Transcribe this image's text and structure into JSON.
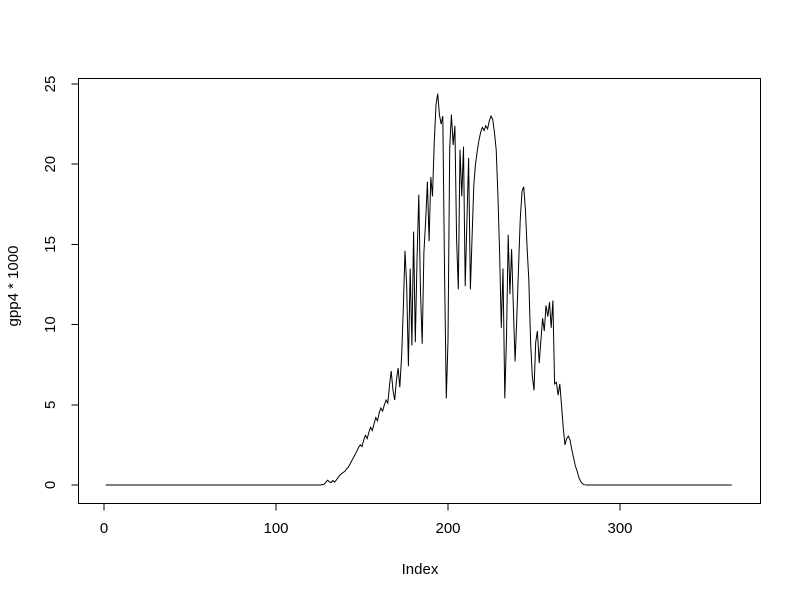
{
  "chart_data": {
    "type": "line",
    "title": "",
    "xlabel": "Index",
    "ylabel": "gpp4 * 1000",
    "x_ticks": [
      0,
      100,
      200,
      300
    ],
    "y_ticks": [
      0,
      5,
      10,
      15,
      20,
      25
    ],
    "xlim": [
      -13.6,
      379.6
    ],
    "ylim": [
      -1.0,
      25.4
    ],
    "grid": false,
    "legend": false,
    "box_frame": true,
    "line_color": "#000000",
    "frame_color": "#000000",
    "background_color": "#ffffff",
    "series": [
      {
        "name": "gpp4 * 1000",
        "points": [
          [
            1,
            0
          ],
          [
            10,
            0
          ],
          [
            20,
            0
          ],
          [
            30,
            0
          ],
          [
            40,
            0
          ],
          [
            50,
            0
          ],
          [
            60,
            0
          ],
          [
            70,
            0
          ],
          [
            80,
            0
          ],
          [
            90,
            0
          ],
          [
            100,
            0
          ],
          [
            110,
            0
          ],
          [
            120,
            0
          ],
          [
            126,
            0
          ],
          [
            128,
            0.05
          ],
          [
            130,
            0.3
          ],
          [
            131,
            0.2
          ],
          [
            132,
            0.15
          ],
          [
            133,
            0.28
          ],
          [
            134,
            0.18
          ],
          [
            135,
            0.3
          ],
          [
            136,
            0.45
          ],
          [
            137,
            0.6
          ],
          [
            138,
            0.7
          ],
          [
            139,
            0.78
          ],
          [
            140,
            0.85
          ],
          [
            141,
            1.0
          ],
          [
            142,
            1.1
          ],
          [
            143,
            1.3
          ],
          [
            144,
            1.5
          ],
          [
            145,
            1.7
          ],
          [
            146,
            1.9
          ],
          [
            147,
            2.1
          ],
          [
            148,
            2.35
          ],
          [
            149,
            2.5
          ],
          [
            150,
            2.4
          ],
          [
            151,
            2.8
          ],
          [
            152,
            3.1
          ],
          [
            153,
            2.9
          ],
          [
            154,
            3.3
          ],
          [
            155,
            3.6
          ],
          [
            156,
            3.4
          ],
          [
            157,
            3.8
          ],
          [
            158,
            4.2
          ],
          [
            159,
            4.0
          ],
          [
            160,
            4.5
          ],
          [
            161,
            4.8
          ],
          [
            162,
            4.6
          ],
          [
            163,
            5.0
          ],
          [
            164,
            5.3
          ],
          [
            165,
            5.1
          ],
          [
            166,
            6.2
          ],
          [
            167,
            7.1
          ],
          [
            168,
            5.9
          ],
          [
            169,
            5.3
          ],
          [
            170,
            6.5
          ],
          [
            171,
            7.3
          ],
          [
            172,
            6.1
          ],
          [
            173,
            8.0
          ],
          [
            174,
            11.0
          ],
          [
            175,
            14.6
          ],
          [
            176,
            12.4
          ],
          [
            177,
            7.4
          ],
          [
            178,
            13.5
          ],
          [
            179,
            8.7
          ],
          [
            180,
            15.8
          ],
          [
            181,
            8.9
          ],
          [
            182,
            14.0
          ],
          [
            183,
            18.1
          ],
          [
            184,
            12.0
          ],
          [
            185,
            8.8
          ],
          [
            186,
            14.5
          ],
          [
            187,
            16.4
          ],
          [
            188,
            18.9
          ],
          [
            189,
            15.2
          ],
          [
            190,
            19.2
          ],
          [
            191,
            18.0
          ],
          [
            192,
            21.3
          ],
          [
            193,
            23.7
          ],
          [
            194,
            24.4
          ],
          [
            195,
            23.1
          ],
          [
            196,
            22.5
          ],
          [
            197,
            23.0
          ],
          [
            198,
            13.0
          ],
          [
            199,
            5.4
          ],
          [
            200,
            9.0
          ],
          [
            201,
            21.0
          ],
          [
            202,
            23.1
          ],
          [
            203,
            21.2
          ],
          [
            204,
            22.4
          ],
          [
            205,
            15.3
          ],
          [
            206,
            12.2
          ],
          [
            207,
            20.9
          ],
          [
            208,
            18.0
          ],
          [
            209,
            21.1
          ],
          [
            210,
            12.4
          ],
          [
            211,
            16.4
          ],
          [
            212,
            20.4
          ],
          [
            213,
            12.2
          ],
          [
            214,
            15.5
          ],
          [
            215,
            18.7
          ],
          [
            216,
            20.0
          ],
          [
            217,
            20.8
          ],
          [
            218,
            21.5
          ],
          [
            219,
            22.0
          ],
          [
            220,
            22.3
          ],
          [
            221,
            22.1
          ],
          [
            222,
            22.4
          ],
          [
            223,
            22.2
          ],
          [
            224,
            22.7
          ],
          [
            225,
            23.0
          ],
          [
            226,
            22.8
          ],
          [
            227,
            22.0
          ],
          [
            228,
            20.9
          ],
          [
            229,
            18.1
          ],
          [
            230,
            14.5
          ],
          [
            231,
            9.8
          ],
          [
            232,
            13.5
          ],
          [
            233,
            5.4
          ],
          [
            234,
            9.2
          ],
          [
            235,
            15.6
          ],
          [
            236,
            11.9
          ],
          [
            237,
            14.7
          ],
          [
            238,
            11.0
          ],
          [
            239,
            7.7
          ],
          [
            240,
            10.4
          ],
          [
            241,
            13.5
          ],
          [
            242,
            16.5
          ],
          [
            243,
            18.3
          ],
          [
            244,
            18.6
          ],
          [
            245,
            17.2
          ],
          [
            246,
            14.8
          ],
          [
            247,
            12.8
          ],
          [
            248,
            8.9
          ],
          [
            249,
            6.8
          ],
          [
            250,
            5.9
          ],
          [
            251,
            8.9
          ],
          [
            252,
            9.6
          ],
          [
            253,
            7.6
          ],
          [
            254,
            9.0
          ],
          [
            255,
            10.4
          ],
          [
            256,
            9.6
          ],
          [
            257,
            11.2
          ],
          [
            258,
            10.5
          ],
          [
            259,
            11.4
          ],
          [
            260,
            9.8
          ],
          [
            261,
            11.5
          ],
          [
            262,
            6.3
          ],
          [
            263,
            6.4
          ],
          [
            264,
            5.6
          ],
          [
            265,
            6.3
          ],
          [
            266,
            5.0
          ],
          [
            267,
            3.6
          ],
          [
            268,
            2.5
          ],
          [
            269,
            2.9
          ],
          [
            270,
            3.05
          ],
          [
            271,
            2.8
          ],
          [
            272,
            2.2
          ],
          [
            273,
            1.7
          ],
          [
            274,
            1.2
          ],
          [
            275,
            0.9
          ],
          [
            276,
            0.5
          ],
          [
            277,
            0.25
          ],
          [
            278,
            0.1
          ],
          [
            279,
            0.02
          ],
          [
            281,
            0
          ],
          [
            285,
            0
          ],
          [
            290,
            0
          ],
          [
            300,
            0
          ],
          [
            310,
            0
          ],
          [
            320,
            0
          ],
          [
            330,
            0
          ],
          [
            340,
            0
          ],
          [
            350,
            0
          ],
          [
            360,
            0
          ],
          [
            365,
            0
          ]
        ]
      }
    ]
  }
}
